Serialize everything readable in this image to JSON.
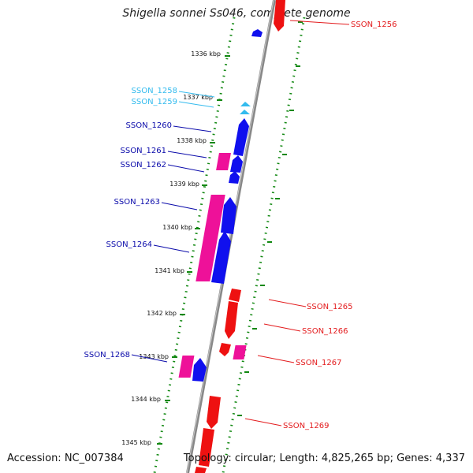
{
  "title": "Shigella sonnei Ss046, complete genome",
  "accession": "Accession: NC_007384",
  "footer": "Topology: circular; Length: 4,825,265 bp; Genes: 4,337",
  "ticks": [
    "1336 kbp",
    "1337 kbp",
    "1338 kbp",
    "1339 kbp",
    "1340 kbp",
    "1341 kbp",
    "1342 kbp",
    "1343 kbp",
    "1344 kbp",
    "1345 kbp"
  ],
  "labels": [
    {
      "text": "SSON_1256",
      "color": "#e31a1c"
    },
    {
      "text": "SSON_1258",
      "color": "#33bbee"
    },
    {
      "text": "SSON_1259",
      "color": "#33bbee"
    },
    {
      "text": "SSON_1260",
      "color": "#0a0aaa"
    },
    {
      "text": "SSON_1261",
      "color": "#0a0aaa"
    },
    {
      "text": "SSON_1262",
      "color": "#0a0aaa"
    },
    {
      "text": "SSON_1263",
      "color": "#0a0aaa"
    },
    {
      "text": "SSON_1264",
      "color": "#0a0aaa"
    },
    {
      "text": "SSON_1265",
      "color": "#e31a1c"
    },
    {
      "text": "SSON_1266",
      "color": "#e31a1c"
    },
    {
      "text": "SSON_1267",
      "color": "#e31a1c"
    },
    {
      "text": "SSON_1268",
      "color": "#0a0aaa"
    },
    {
      "text": "SSON_1269",
      "color": "#e31a1c"
    }
  ],
  "colors": {
    "forward_cds": "#1010ee",
    "reverse_cds": "#ee1111",
    "gene": "#ee1199",
    "trna": "#33bbee",
    "backbone": "#888888",
    "dotted_guide": "#118811"
  }
}
